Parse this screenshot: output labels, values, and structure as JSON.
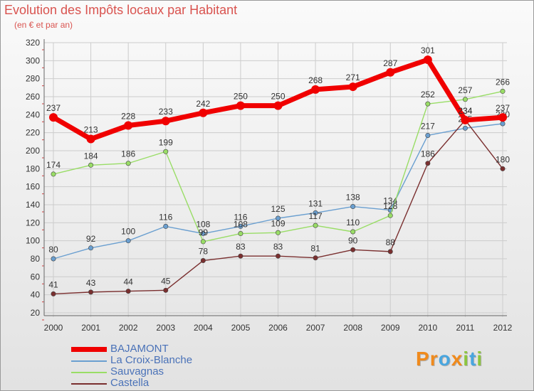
{
  "header": {
    "title": "Evolution des Impôts locaux par Habitant",
    "subtitle": "(en € et par an)"
  },
  "brand": {
    "logo_text": "Proxiti",
    "letters": [
      "P",
      "r",
      "o",
      "x",
      "i",
      "t",
      "i"
    ]
  },
  "colors": {
    "BAJAMONT": "#f00000",
    "La Croix-Blanche": "#6a9fd0",
    "Sauvagnas": "#99dd66",
    "Castella": "#7a2f2f",
    "grid": "#cccccc",
    "axis_text": "#333333",
    "legend_text": "#4a72b8",
    "logo": [
      "#f08a1c",
      "#f08a1c",
      "#49a6df",
      "#f08a1c",
      "#8cc63f",
      "#49a6df",
      "#8cc63f"
    ]
  },
  "chart_data": {
    "type": "line",
    "title": "Evolution des Impôts locaux par Habitant",
    "subtitle": "(en € et par an)",
    "xlabel": "",
    "ylabel": "",
    "ylim": [
      20,
      320
    ],
    "ytick_step": 20,
    "grid": true,
    "legend_position": "bottom-left",
    "x": [
      "2000",
      "2001",
      "2002",
      "2003",
      "2004",
      "2005",
      "2006",
      "2007",
      "2008",
      "2009",
      "2010",
      "2011",
      "2012"
    ],
    "series": [
      {
        "name": "BAJAMONT",
        "values": [
          237,
          213,
          228,
          233,
          242,
          250,
          250,
          268,
          271,
          287,
          301,
          234,
          237
        ],
        "labels": [
          "237",
          "213",
          "228",
          "233",
          "242",
          "250",
          "250",
          "268",
          "271",
          "287",
          "301",
          "234",
          "237"
        ]
      },
      {
        "name": "La Croix-Blanche",
        "values": [
          80,
          92,
          100,
          116,
          108,
          116,
          125,
          131,
          138,
          134,
          217,
          225,
          230
        ],
        "labels": [
          "80",
          "92",
          "100",
          "116",
          "108",
          "116",
          "125",
          "131",
          "138",
          "134",
          "217",
          "225",
          "230"
        ]
      },
      {
        "name": "Sauvagnas",
        "values": [
          174,
          184,
          186,
          199,
          99,
          108,
          109,
          117,
          110,
          128,
          252,
          257,
          266
        ],
        "labels": [
          "174",
          "184",
          "186",
          "199",
          "99",
          "108",
          "109",
          "117",
          "110",
          "128",
          "252",
          "257",
          "266"
        ]
      },
      {
        "name": "Castella",
        "values": [
          41,
          43,
          44,
          45,
          78,
          83,
          83,
          81,
          90,
          88,
          186,
          234,
          180
        ],
        "labels": [
          "41",
          "43",
          "44",
          "45",
          "78",
          "83",
          "83",
          "81",
          "90",
          "88",
          "186",
          "234",
          "180"
        ]
      }
    ]
  }
}
